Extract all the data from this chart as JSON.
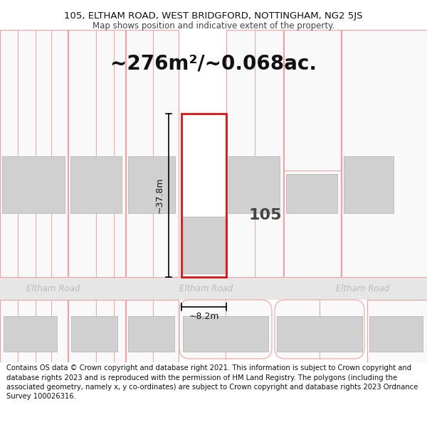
{
  "title_line1": "105, ELTHAM ROAD, WEST BRIDGFORD, NOTTINGHAM, NG2 5JS",
  "title_line2": "Map shows position and indicative extent of the property.",
  "area_text": "~276m²/~0.068ac.",
  "property_number": "105",
  "dim_width": "~8.2m",
  "dim_height": "~37.8m",
  "road_name": "Eltham Road",
  "footer_text": "Contains OS data © Crown copyright and database right 2021. This information is subject to Crown copyright and database rights 2023 and is reproduced with the permission of HM Land Registry. The polygons (including the associated geometry, namely x, y co-ordinates) are subject to Crown copyright and database rights 2023 Ordnance Survey 100026316.",
  "bg_color": "#ffffff",
  "road_color": "#e6e6e6",
  "plot_red": "#e01010",
  "neighbor_line": "#f5a0a0",
  "neighbor_fill": "#f9f9f9",
  "building_fill": "#d0d0d0",
  "building_line": "#b8b8b8",
  "road_text_color": "#bbbbbb",
  "title_fontsize": 9.5,
  "subtitle_fontsize": 8.5,
  "area_fontsize": 20,
  "label_fontsize": 16,
  "dim_fontsize": 9,
  "footer_fontsize": 7.2,
  "road_label_fontsize": 8.5
}
